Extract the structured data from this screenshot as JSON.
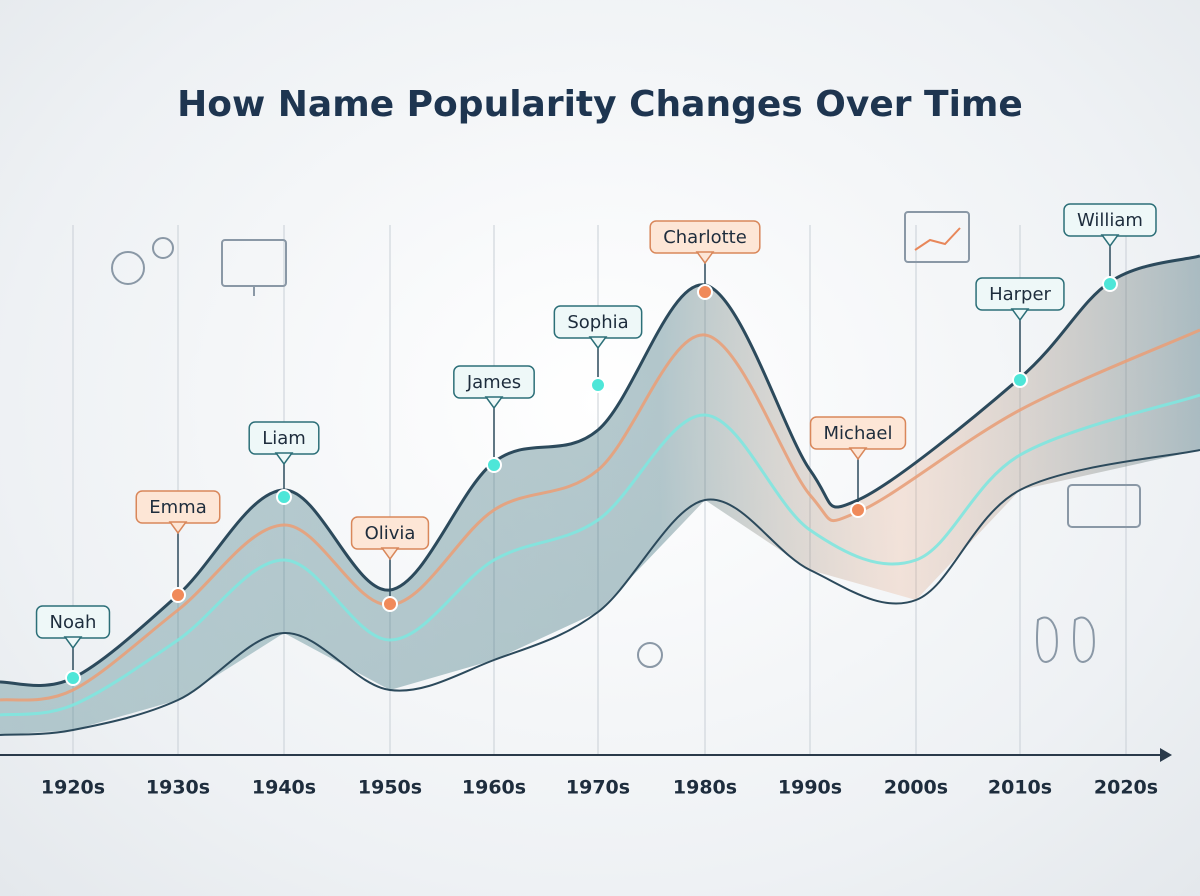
{
  "title": "How Name Popularity Changes Over Time",
  "axis": {
    "labels": [
      "1920s",
      "1930s",
      "1940s",
      "1950s",
      "1960s",
      "1970s",
      "1980s",
      "1990s",
      "2000s",
      "2010s",
      "2020s"
    ]
  },
  "callouts": [
    {
      "label": "Noah"
    },
    {
      "label": "Emma"
    },
    {
      "label": "Liam"
    },
    {
      "label": "Olivia"
    },
    {
      "label": "James"
    },
    {
      "label": "Sophia"
    },
    {
      "label": "Charlotte"
    },
    {
      "label": "Michael"
    },
    {
      "label": "Harper"
    },
    {
      "label": "William"
    }
  ]
}
